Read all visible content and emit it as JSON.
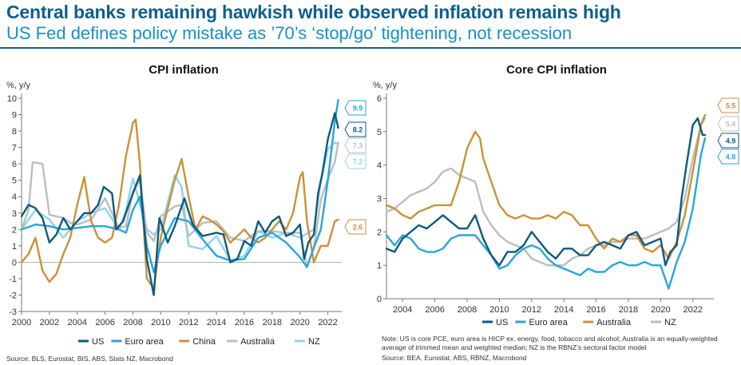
{
  "header": {
    "title": "Central banks remaining hawkish while observed inflation remains high",
    "subtitle": "US Fed defines policy mistake as ’70’s ‘stop/go’ tightening, not recession"
  },
  "chart_data": [
    {
      "type": "line",
      "title": "CPI inflation",
      "unit_label": "%, y/y",
      "xlim": [
        2000,
        2023
      ],
      "ylim": [
        -3,
        10
      ],
      "xticks": [
        "2000",
        "2002",
        "2004",
        "2006",
        "2008",
        "2010",
        "2012",
        "2014",
        "2016",
        "2018",
        "2020",
        "2022"
      ],
      "yticks": [
        "-3",
        "-2",
        "-1",
        "0",
        "1",
        "2",
        "3",
        "4",
        "5",
        "6",
        "7",
        "8",
        "9",
        "10"
      ],
      "series": [
        {
          "name": "US",
          "color": "#0d5a7e",
          "end_label": "8.2",
          "x": [
            2000,
            2000.5,
            2001,
            2001.5,
            2002,
            2002.5,
            2003,
            2003.5,
            2004,
            2004.5,
            2005,
            2005.5,
            2005.9,
            2006.5,
            2006.8,
            2007.3,
            2007.7,
            2008,
            2008.5,
            2009,
            2009.5,
            2009.9,
            2010.5,
            2011,
            2011.7,
            2012.3,
            2013,
            2014,
            2014.5,
            2015,
            2015.5,
            2016,
            2016.5,
            2017,
            2017.5,
            2018,
            2018.5,
            2019,
            2019.5,
            2020,
            2020.3,
            2020.6,
            2021,
            2021.3,
            2021.6,
            2022,
            2022.5,
            2022.75
          ],
          "values": [
            2.8,
            3.5,
            3.3,
            2.7,
            1.2,
            1.7,
            2.7,
            2.0,
            2.5,
            3.0,
            3.0,
            3.5,
            4.6,
            4.2,
            2.0,
            2.5,
            3.5,
            4.2,
            5.3,
            0.2,
            -2.0,
            2.7,
            1.2,
            2.2,
            3.9,
            2.3,
            1.6,
            1.8,
            1.7,
            0.0,
            0.2,
            1.3,
            1.0,
            2.5,
            1.8,
            2.5,
            2.8,
            1.6,
            1.8,
            2.3,
            0.2,
            1.2,
            1.7,
            4.2,
            5.4,
            7.5,
            9.1,
            8.2
          ]
        },
        {
          "name": "Euro area",
          "color": "#28a6d9",
          "end_label": "9.9",
          "x": [
            2000,
            2001,
            2002,
            2003,
            2004,
            2005,
            2006,
            2007,
            2007.5,
            2008,
            2008.5,
            2009,
            2009.5,
            2010,
            2011,
            2012,
            2013,
            2014,
            2015,
            2016,
            2017,
            2018,
            2019,
            2020,
            2020.5,
            2021,
            2021.5,
            2022,
            2022.5,
            2022.75
          ],
          "values": [
            2.0,
            2.3,
            2.2,
            2.0,
            2.1,
            2.2,
            2.2,
            2.0,
            1.8,
            3.2,
            4.0,
            1.0,
            -0.6,
            1.0,
            2.7,
            2.5,
            1.4,
            0.4,
            0.1,
            0.2,
            1.5,
            1.8,
            1.2,
            0.3,
            -0.3,
            0.9,
            2.0,
            5.0,
            8.6,
            9.9
          ]
        },
        {
          "name": "China",
          "color": "#c9923a",
          "end_label": "2.6",
          "x": [
            2000,
            2000.5,
            2001,
            2001.5,
            2002,
            2002.5,
            2003,
            2003.5,
            2004,
            2004.5,
            2005,
            2005.5,
            2006,
            2006.5,
            2007,
            2007.5,
            2008,
            2008.2,
            2008.5,
            2009,
            2009.5,
            2010,
            2010.5,
            2011,
            2011.5,
            2012,
            2012.5,
            2013,
            2013.5,
            2014,
            2014.5,
            2015,
            2015.5,
            2016,
            2016.5,
            2017,
            2017.5,
            2018,
            2018.5,
            2019,
            2019.5,
            2020,
            2020.2,
            2020.5,
            2021,
            2021.5,
            2022,
            2022.5,
            2022.75
          ],
          "values": [
            0.0,
            0.5,
            1.5,
            -0.5,
            -1.2,
            -0.7,
            0.5,
            1.5,
            3.5,
            5.2,
            2.5,
            1.5,
            1.2,
            1.5,
            3.5,
            6.5,
            8.5,
            8.7,
            6.0,
            -1.0,
            -1.6,
            1.5,
            3.3,
            5.0,
            6.3,
            4.0,
            2.0,
            2.8,
            2.6,
            2.3,
            1.9,
            1.2,
            1.6,
            2.0,
            1.5,
            1.2,
            1.5,
            2.0,
            2.5,
            2.0,
            3.0,
            5.2,
            5.5,
            2.5,
            0.0,
            1.0,
            1.0,
            2.5,
            2.6
          ]
        },
        {
          "name": "Australia",
          "color": "#bdbdbd",
          "end_label": "7.3",
          "x": [
            2000,
            2000.5,
            2000.8,
            2001.5,
            2002,
            2002.5,
            2003,
            2003.5,
            2004,
            2005,
            2006,
            2006.5,
            2007,
            2007.5,
            2008,
            2008.5,
            2009,
            2009.5,
            2010,
            2011,
            2011.5,
            2012,
            2013,
            2014,
            2015,
            2016,
            2017,
            2018,
            2019,
            2020,
            2020.5,
            2021,
            2021.5,
            2022,
            2022.5,
            2022.75
          ],
          "values": [
            2.0,
            3.2,
            6.1,
            6.0,
            2.9,
            2.8,
            2.7,
            2.4,
            2.3,
            2.6,
            3.9,
            3.0,
            2.1,
            2.2,
            4.3,
            5.0,
            1.8,
            1.3,
            2.8,
            3.4,
            3.5,
            1.6,
            2.4,
            2.5,
            1.5,
            1.3,
            1.9,
            1.9,
            1.8,
            1.8,
            -0.3,
            0.9,
            3.8,
            5.1,
            6.1,
            7.3
          ]
        },
        {
          "name": "NZ",
          "color": "#8fd3ef",
          "end_label": "7.2",
          "x": [
            2000,
            2001,
            2002,
            2003,
            2004,
            2005,
            2006,
            2007,
            2007.5,
            2008,
            2009,
            2009.5,
            2010,
            2011,
            2011.5,
            2012,
            2013,
            2014,
            2015,
            2016,
            2017,
            2018,
            2019,
            2020,
            2021,
            2021.5,
            2022,
            2022.5,
            2022.75
          ],
          "values": [
            2.0,
            3.2,
            2.6,
            1.5,
            2.5,
            3.0,
            3.3,
            2.0,
            3.2,
            5.1,
            2.0,
            1.7,
            2.0,
            5.3,
            4.6,
            1.0,
            0.8,
            1.6,
            0.1,
            0.4,
            1.9,
            1.5,
            1.8,
            1.5,
            2.0,
            4.9,
            6.9,
            7.3,
            7.2
          ]
        }
      ],
      "legend": [
        "US",
        "Euro area",
        "China",
        "Australia",
        "NZ"
      ],
      "source": "Source: BLS, Eurostat, BIS, ABS, Stats NZ, Macrobond"
    },
    {
      "type": "line",
      "title": "Core CPI inflation",
      "unit_label": "%, y/y",
      "xlim": [
        2003,
        2023.3
      ],
      "ylim": [
        0,
        6
      ],
      "xticks": [
        "2004",
        "2006",
        "2008",
        "2010",
        "2012",
        "2014",
        "2016",
        "2018",
        "2020",
        "2022"
      ],
      "yticks": [
        "0",
        "1",
        "2",
        "3",
        "4",
        "5",
        "6"
      ],
      "series": [
        {
          "name": "US",
          "color": "#0d5a7e",
          "end_label": "4.9",
          "x": [
            2003,
            2003.5,
            2004,
            2004.5,
            2005,
            2005.5,
            2006,
            2006.5,
            2007,
            2007.5,
            2008,
            2008.5,
            2009,
            2009.5,
            2010,
            2010.5,
            2011,
            2011.5,
            2012,
            2012.5,
            2013,
            2013.5,
            2014,
            2014.5,
            2015,
            2015.5,
            2016,
            2016.5,
            2017,
            2017.5,
            2018,
            2018.5,
            2019,
            2019.5,
            2020,
            2020.3,
            2020.6,
            2021,
            2021.3,
            2021.6,
            2022,
            2022.3,
            2022.6,
            2022.75
          ],
          "values": [
            1.5,
            1.4,
            1.8,
            2.0,
            2.2,
            2.1,
            2.3,
            2.5,
            2.3,
            2.1,
            2.1,
            2.5,
            1.8,
            1.3,
            1.0,
            1.4,
            1.4,
            1.6,
            2.0,
            1.7,
            1.4,
            1.2,
            1.5,
            1.5,
            1.3,
            1.3,
            1.6,
            1.7,
            1.6,
            1.5,
            1.9,
            2.0,
            1.6,
            1.7,
            1.8,
            1.0,
            1.4,
            1.6,
            3.0,
            4.0,
            5.2,
            5.4,
            4.9,
            4.9
          ]
        },
        {
          "name": "Euro area",
          "color": "#28a6d9",
          "end_label": "4.8",
          "x": [
            2003,
            2003.5,
            2004,
            2004.5,
            2005,
            2005.5,
            2006,
            2006.5,
            2007,
            2007.5,
            2008,
            2008.5,
            2009,
            2009.5,
            2010,
            2010.5,
            2011,
            2011.5,
            2012,
            2012.5,
            2013,
            2013.5,
            2014,
            2014.5,
            2015,
            2015.5,
            2016,
            2016.5,
            2017,
            2017.5,
            2018,
            2018.5,
            2019,
            2019.5,
            2020,
            2020.5,
            2021,
            2021.5,
            2022,
            2022.5,
            2022.75
          ],
          "values": [
            1.9,
            1.6,
            1.9,
            1.8,
            1.5,
            1.4,
            1.4,
            1.5,
            1.8,
            1.9,
            1.9,
            1.9,
            1.6,
            1.3,
            0.9,
            1.0,
            1.3,
            1.5,
            1.6,
            1.5,
            1.2,
            1.0,
            0.9,
            0.8,
            0.7,
            0.9,
            0.8,
            0.8,
            1.0,
            1.1,
            1.0,
            1.0,
            1.1,
            1.0,
            1.0,
            0.3,
            1.1,
            1.7,
            2.7,
            4.3,
            4.8
          ]
        },
        {
          "name": "Australia",
          "color": "#c9923a",
          "end_label": "5.5",
          "x": [
            2003,
            2003.5,
            2004,
            2004.5,
            2005,
            2005.5,
            2006,
            2006.5,
            2007,
            2007.5,
            2008,
            2008.5,
            2008.8,
            2009,
            2009.5,
            2010,
            2010.5,
            2011,
            2011.5,
            2012,
            2012.5,
            2013,
            2013.5,
            2014,
            2014.5,
            2015,
            2015.5,
            2016,
            2016.5,
            2017,
            2017.5,
            2018,
            2018.5,
            2019,
            2019.5,
            2020,
            2020.5,
            2021,
            2021.5,
            2022,
            2022.5,
            2022.75
          ],
          "values": [
            2.8,
            2.7,
            2.5,
            2.4,
            2.6,
            2.7,
            2.8,
            2.8,
            2.8,
            3.5,
            4.5,
            5.0,
            4.8,
            4.2,
            3.5,
            2.8,
            2.5,
            2.4,
            2.5,
            2.4,
            2.4,
            2.5,
            2.4,
            2.6,
            2.5,
            2.2,
            2.2,
            1.8,
            1.5,
            1.8,
            1.7,
            1.9,
            1.9,
            1.5,
            1.4,
            1.6,
            1.2,
            1.7,
            2.5,
            3.8,
            5.2,
            5.5
          ]
        },
        {
          "name": "NZ",
          "color": "#bdbdbd",
          "end_label": "5.4",
          "x": [
            2003,
            2003.5,
            2004,
            2004.5,
            2005,
            2005.5,
            2006,
            2006.5,
            2007,
            2007.5,
            2008,
            2008.5,
            2009,
            2009.5,
            2010,
            2010.5,
            2011,
            2011.5,
            2012,
            2012.5,
            2013,
            2013.5,
            2014,
            2014.5,
            2015,
            2015.5,
            2016,
            2016.5,
            2017,
            2017.5,
            2018,
            2018.5,
            2019,
            2019.5,
            2020,
            2020.5,
            2021,
            2021.5,
            2022,
            2022.5,
            2022.75
          ],
          "values": [
            2.6,
            2.7,
            2.9,
            3.1,
            3.2,
            3.3,
            3.5,
            3.8,
            3.9,
            3.7,
            3.6,
            3.5,
            2.6,
            2.2,
            1.9,
            1.7,
            1.6,
            1.5,
            1.2,
            1.1,
            1.0,
            1.0,
            1.0,
            1.2,
            1.3,
            1.5,
            1.6,
            1.6,
            1.7,
            1.7,
            1.8,
            1.8,
            1.8,
            1.9,
            2.0,
            2.1,
            2.3,
            3.0,
            4.2,
            5.2,
            5.4
          ]
        }
      ],
      "legend": [
        "US",
        "Euro area",
        "Australia",
        "NZ"
      ],
      "note": [
        "Note: US is core PCE, euro area is HICP ex. energy, food, tobacco and alcohol; Australia is an equally-weighted",
        "average of trimmed mean and weighted median; NZ is the RBNZ’s sectoral factor model"
      ],
      "source": "Source: BEA, Eurostat, ABS, RBNZ, Macrobond"
    }
  ]
}
